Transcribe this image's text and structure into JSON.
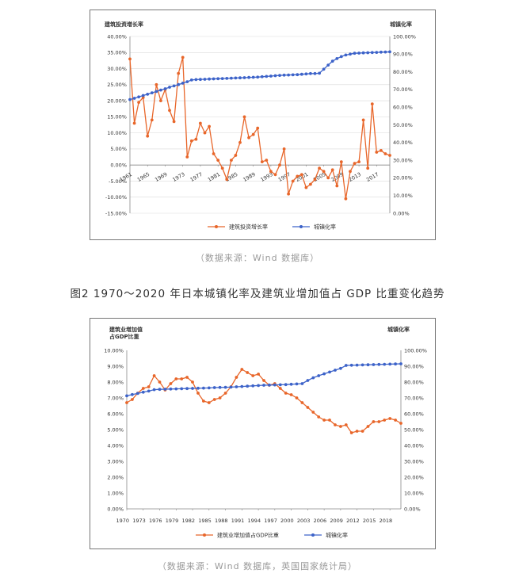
{
  "figure_title": "图2 1970～2020 年日本城镇化率及建筑业增加值占 GDP 比重变化趋势",
  "source1": "（数据来源：Wind 数据库）",
  "source2": "（数据来源：Wind 数据库，英国国家统计局）",
  "colors": {
    "orange": "#e8662a",
    "blue": "#3d63c9",
    "grid": "#d9d9d9",
    "axis": "#888888"
  },
  "chart_data": [
    {
      "type": "line",
      "title": "",
      "y_left_title": "建筑投资增长率",
      "y_right_title": "城镇化率",
      "x_range": [
        1961,
        2020
      ],
      "x_tick_labels": [
        "1961",
        "1965",
        "1969",
        "1973",
        "1977",
        "1981",
        "1985",
        "1989",
        "1993",
        "1997",
        "2001",
        "2005",
        "2009",
        "2013",
        "2017"
      ],
      "y_left_ticks": [
        "40.00%",
        "35.00%",
        "30.00%",
        "25.00%",
        "20.00%",
        "15.00%",
        "10.00%",
        "5.00%",
        "0.00%",
        "-5.00%",
        "-10.00%",
        "-15.00%"
      ],
      "y_left_range": [
        -15,
        40
      ],
      "y_right_ticks": [
        "100.00%",
        "90.00%",
        "80.00%",
        "70.00%",
        "60.00%",
        "50.00%",
        "40.00%",
        "30.00%",
        "20.00%",
        "10.00%",
        "0.00%"
      ],
      "y_right_range": [
        0,
        100
      ],
      "legend_position": "bottom",
      "grid": true,
      "series": [
        {
          "name": "建筑投资增长率",
          "axis": "left",
          "color": "orange",
          "x": [
            1961,
            1962,
            1963,
            1964,
            1965,
            1966,
            1967,
            1968,
            1969,
            1970,
            1971,
            1972,
            1973,
            1974,
            1975,
            1976,
            1977,
            1978,
            1979,
            1980,
            1981,
            1982,
            1983,
            1984,
            1985,
            1986,
            1987,
            1988,
            1989,
            1990,
            1991,
            1992,
            1993,
            1994,
            1995,
            1996,
            1997,
            1998,
            1999,
            2000,
            2001,
            2002,
            2003,
            2004,
            2005,
            2006,
            2007,
            2008,
            2009,
            2010,
            2011,
            2012,
            2013,
            2014,
            2015,
            2016,
            2017,
            2018,
            2019,
            2020
          ],
          "values": [
            33,
            13,
            19.5,
            21,
            9,
            14,
            25,
            20,
            23.5,
            17,
            13.5,
            28.5,
            33.5,
            2.5,
            7.5,
            8,
            13,
            10,
            12,
            3.5,
            1.5,
            -1,
            -4.5,
            1.5,
            3,
            7,
            15,
            8.5,
            9.5,
            11.5,
            1,
            1.5,
            -2,
            -3,
            0,
            5,
            -9,
            -5,
            -3.5,
            -3,
            -7,
            -6,
            -4.5,
            -1,
            -2,
            -4,
            -1.5,
            -6.5,
            1,
            -10.5,
            -2,
            0.5,
            1,
            14,
            -1,
            19,
            4,
            4.5,
            3.5,
            3
          ]
        },
        {
          "name": "城镇化率",
          "axis": "right",
          "color": "blue",
          "x": [
            1961,
            1962,
            1963,
            1964,
            1965,
            1966,
            1967,
            1968,
            1969,
            1970,
            1971,
            1972,
            1973,
            1974,
            1975,
            1976,
            1977,
            1978,
            1979,
            1980,
            1981,
            1982,
            1983,
            1984,
            1985,
            1986,
            1987,
            1988,
            1989,
            1990,
            1991,
            1992,
            1993,
            1994,
            1995,
            1996,
            1997,
            1998,
            1999,
            2000,
            2001,
            2002,
            2003,
            2004,
            2005,
            2006,
            2007,
            2008,
            2009,
            2010,
            2011,
            2012,
            2013,
            2014,
            2015,
            2016,
            2017,
            2018,
            2019,
            2020
          ],
          "values": [
            64.3,
            65,
            65.8,
            66.6,
            67.3,
            68.1,
            68.9,
            69.7,
            70.4,
            71.3,
            72,
            72.8,
            73.6,
            74.4,
            75.4,
            75.6,
            75.7,
            75.8,
            75.9,
            76,
            76.1,
            76.2,
            76.3,
            76.4,
            76.5,
            76.6,
            76.7,
            76.8,
            76.9,
            77,
            77.2,
            77.4,
            77.6,
            77.8,
            78,
            78.1,
            78.2,
            78.3,
            78.4,
            78.6,
            78.8,
            79,
            79,
            79.2,
            81.5,
            83.8,
            86,
            87.5,
            88.6,
            89.5,
            90,
            90.5,
            90.6,
            90.7,
            90.8,
            90.9,
            91,
            91.1,
            91.2,
            91.3
          ]
        }
      ]
    },
    {
      "type": "line",
      "title": "",
      "y_left_title": "建筑业增加值\n占GDP比重",
      "y_right_title": "城镇化率",
      "x_range": [
        1970,
        2020
      ],
      "x_tick_labels": [
        "1970",
        "1973",
        "1976",
        "1979",
        "1982",
        "1985",
        "1988",
        "1991",
        "1994",
        "1997",
        "2000",
        "2003",
        "2006",
        "2009",
        "2012",
        "2015",
        "2018"
      ],
      "y_left_ticks": [
        "10.00%",
        "9.00%",
        "8.00%",
        "7.00%",
        "6.00%",
        "5.00%",
        "4.00%",
        "3.00%",
        "2.00%",
        "1.00%",
        "0.00%"
      ],
      "y_left_range": [
        0,
        10
      ],
      "y_right_ticks": [
        "100.00%",
        "90.00%",
        "80.00%",
        "70.00%",
        "60.00%",
        "50.00%",
        "40.00%",
        "30.00%",
        "20.00%",
        "10.00%",
        "0.00%"
      ],
      "y_right_range": [
        0,
        100
      ],
      "legend_position": "bottom",
      "grid": false,
      "series": [
        {
          "name": "建筑业增加值占GDP比重",
          "axis": "left",
          "color": "orange",
          "x": [
            1970,
            1971,
            1972,
            1973,
            1974,
            1975,
            1976,
            1977,
            1978,
            1979,
            1980,
            1981,
            1982,
            1983,
            1984,
            1985,
            1986,
            1987,
            1988,
            1989,
            1990,
            1991,
            1992,
            1993,
            1994,
            1995,
            1996,
            1997,
            1998,
            1999,
            2000,
            2001,
            2002,
            2003,
            2004,
            2005,
            2006,
            2007,
            2008,
            2009,
            2010,
            2011,
            2012,
            2013,
            2014,
            2015,
            2016,
            2017,
            2018,
            2019,
            2020
          ],
          "values": [
            6.7,
            6.9,
            7.3,
            7.6,
            7.7,
            8.4,
            8.0,
            7.5,
            7.9,
            8.2,
            8.2,
            8.3,
            8.0,
            7.3,
            6.8,
            6.7,
            6.9,
            7.0,
            7.3,
            7.7,
            8.3,
            8.8,
            8.6,
            8.4,
            8.5,
            8.1,
            7.8,
            7.9,
            7.6,
            7.3,
            7.2,
            7.0,
            6.7,
            6.4,
            6.1,
            5.8,
            5.6,
            5.6,
            5.3,
            5.2,
            5.3,
            4.8,
            4.9,
            4.9,
            5.2,
            5.5,
            5.5,
            5.6,
            5.7,
            5.6,
            5.4
          ]
        },
        {
          "name": "城镇化率",
          "axis": "right",
          "color": "blue",
          "x": [
            1970,
            1971,
            1972,
            1973,
            1974,
            1975,
            1976,
            1977,
            1978,
            1979,
            1980,
            1981,
            1982,
            1983,
            1984,
            1985,
            1986,
            1987,
            1988,
            1989,
            1990,
            1991,
            1992,
            1993,
            1994,
            1995,
            1996,
            1997,
            1998,
            1999,
            2000,
            2001,
            2002,
            2003,
            2004,
            2005,
            2006,
            2007,
            2008,
            2009,
            2010,
            2011,
            2012,
            2013,
            2014,
            2015,
            2016,
            2017,
            2018,
            2019,
            2020
          ],
          "values": [
            71.3,
            72.1,
            72.8,
            73.6,
            74.3,
            75.2,
            75.4,
            75.5,
            75.6,
            75.7,
            75.8,
            75.9,
            76,
            76.1,
            76.2,
            76.3,
            76.5,
            76.6,
            76.7,
            76.8,
            77,
            77.2,
            77.4,
            77.6,
            77.8,
            78,
            78.1,
            78.2,
            78.3,
            78.4,
            78.6,
            78.8,
            79,
            81,
            82.7,
            84,
            85.2,
            86.3,
            87.5,
            88.6,
            90.5,
            90.6,
            90.7,
            90.8,
            90.9,
            91,
            91.1,
            91.2,
            91.3,
            91.4,
            91.5
          ]
        }
      ]
    }
  ]
}
